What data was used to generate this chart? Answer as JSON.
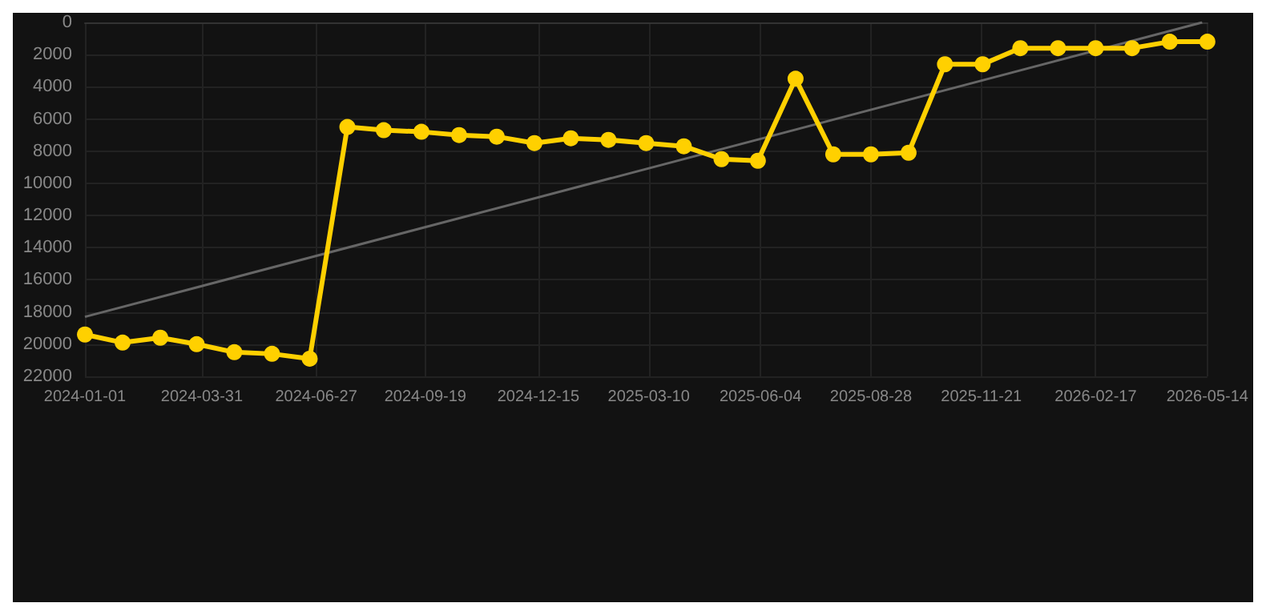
{
  "chart_data": {
    "type": "line",
    "x": [
      "2024-01-01",
      "2024-01-30",
      "2024-02-28",
      "2024-03-27",
      "2024-04-25",
      "2024-05-24",
      "2024-06-22",
      "2024-07-21",
      "2024-08-18",
      "2024-09-16",
      "2024-10-15",
      "2024-11-13",
      "2024-12-12",
      "2025-01-09",
      "2025-02-07",
      "2025-03-08",
      "2025-04-06",
      "2025-05-05",
      "2025-06-02",
      "2025-07-01",
      "2025-07-30",
      "2025-08-28",
      "2025-09-26",
      "2025-10-24",
      "2025-11-22",
      "2025-12-21",
      "2026-01-19",
      "2026-02-17",
      "2026-03-17",
      "2026-04-15",
      "2026-05-14"
    ],
    "series": [
      {
        "color": "#ffd000",
        "marker": "circle",
        "values": [
          19400,
          19900,
          19600,
          20000,
          20500,
          20600,
          20900,
          6500,
          6700,
          6800,
          7000,
          7100,
          7500,
          7200,
          7300,
          7500,
          7700,
          8500,
          8600,
          3500,
          8200,
          8200,
          8100,
          2600,
          2600,
          1600,
          1600,
          1600,
          1600,
          1200,
          1200
        ]
      },
      {
        "type": "line",
        "color": "#666666",
        "marker": "none",
        "x": [
          "2024-01-01",
          "2026-05-10"
        ],
        "values": [
          18300,
          0
        ]
      }
    ],
    "xlim": [
      "2024-01-01",
      "2026-05-14"
    ],
    "xticks": [
      "2024-01-01",
      "2024-03-31",
      "2024-06-27",
      "2024-09-19",
      "2024-12-15",
      "2025-03-10",
      "2025-06-04",
      "2025-08-28",
      "2025-11-21",
      "2026-02-17",
      "2026-05-14"
    ],
    "ylim": [
      22000,
      0
    ],
    "yticks": [
      0,
      2000,
      4000,
      6000,
      8000,
      10000,
      12000,
      14000,
      16000,
      18000,
      20000,
      22000
    ],
    "grid": true
  }
}
